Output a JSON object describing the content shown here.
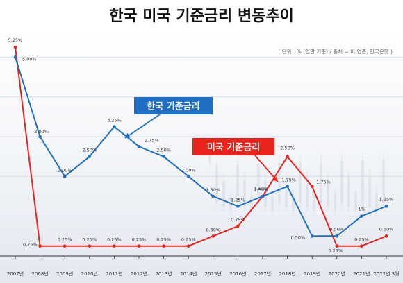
{
  "chart_data": {
    "type": "line",
    "title": "한국 미국 기준금리 변동추이",
    "note": "( 단위 : % (연말 기준) / 출처 = 미 연준, 한국은행 )",
    "categories": [
      "2007년",
      "2008년",
      "2009년",
      "2010년",
      "2011년",
      "2012년",
      "2013년",
      "2014년",
      "2015년",
      "2016년",
      "2017년",
      "2018년",
      "2019년",
      "2020년",
      "2021년",
      "2022년 3월"
    ],
    "ylim": [
      0,
      5.25
    ],
    "grid": true,
    "series": [
      {
        "name": "한국 기준금리",
        "color": "#1f6fc5",
        "values": [
          5.0,
          3.0,
          2.0,
          2.5,
          3.25,
          2.75,
          2.5,
          2.0,
          1.5,
          1.25,
          1.5,
          1.75,
          0.5,
          0.5,
          1.0,
          1.25
        ],
        "labels": [
          "5.00%",
          "3.00%",
          "2.00%",
          "2.50%",
          "3.25%",
          "2.75%",
          "2.50%",
          "2.00%",
          "1.50%",
          "1.25%",
          "1.50%",
          "1.75%",
          "0.50%",
          "0.50%",
          "1%",
          "1.25%"
        ]
      },
      {
        "name": "미국 기준금리",
        "color": "#e8241c",
        "values": [
          5.25,
          0.25,
          0.25,
          0.25,
          0.25,
          0.25,
          0.25,
          0.25,
          0.5,
          0.75,
          1.5,
          2.5,
          1.75,
          0.25,
          0.25,
          0.5
        ],
        "labels": [
          "5.25%",
          "0.25%",
          "0.25%",
          "0.25%",
          "0.25%",
          "0.25%",
          "0.25%",
          "0.25%",
          "0.50%",
          "0.75%",
          "1.50%",
          "2.50%",
          "1.75%",
          "0.25%",
          "0.25%",
          "0.50%"
        ]
      }
    ]
  }
}
